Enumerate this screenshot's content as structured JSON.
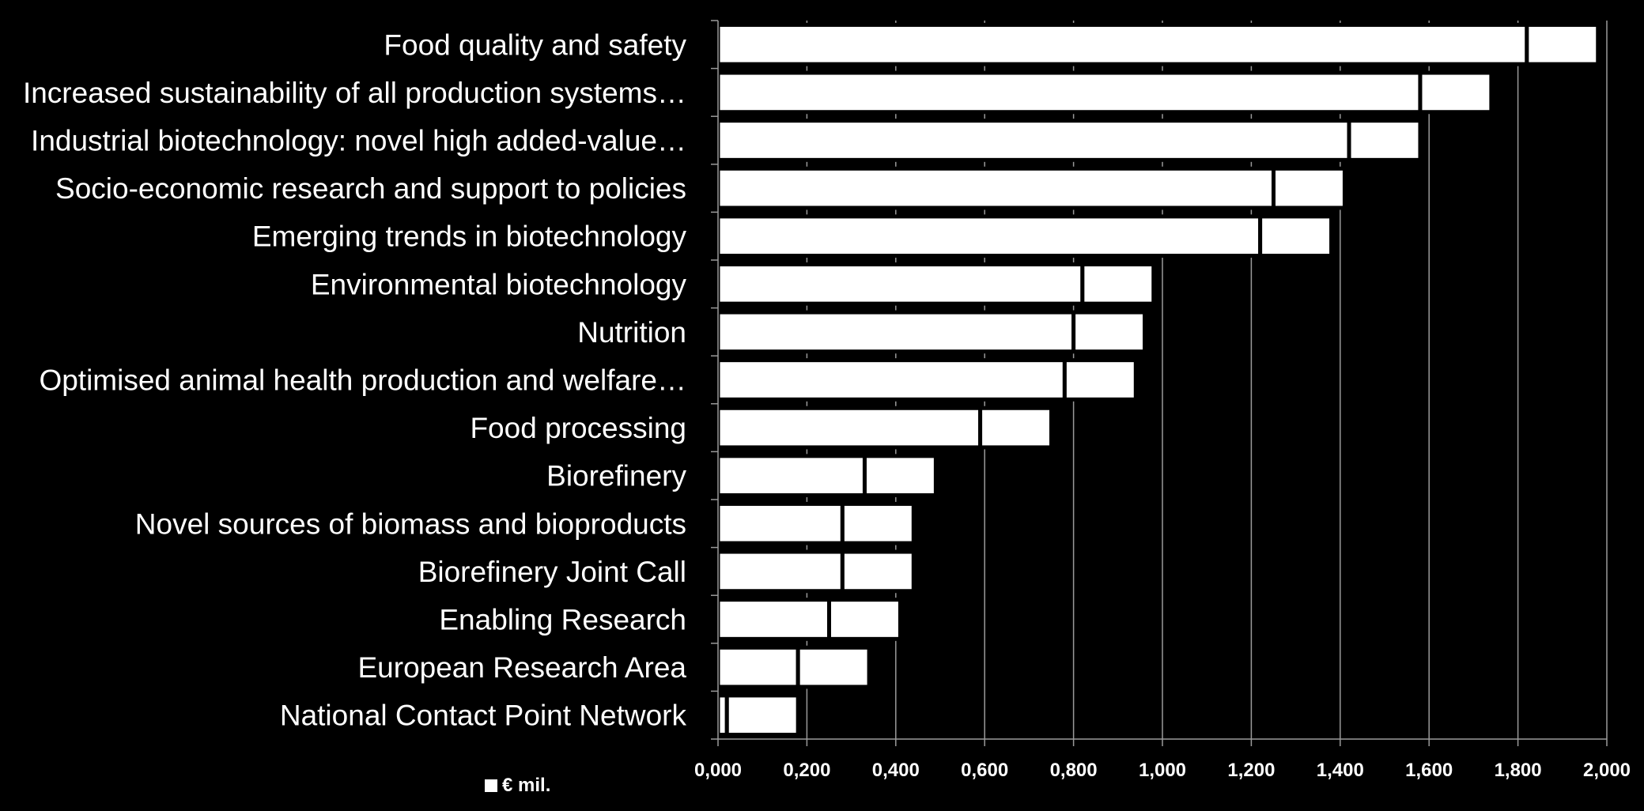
{
  "chart_data": {
    "type": "bar",
    "orientation": "horizontal",
    "stacked": true,
    "categories": [
      "Food quality and safety",
      "Increased sustainability of all production systems…",
      "Industrial biotechnology: novel high added-value…",
      "Socio-economic research and support to policies",
      "Emerging trends in biotechnology",
      "Environmental biotechnology",
      "Nutrition",
      "Optimised animal health production and welfare…",
      "Food processing",
      "Biorefinery",
      "Novel sources of biomass and bioproducts",
      "Biorefinery Joint Call",
      "Enabling Research",
      "European Research Area",
      "National Contact Point Network"
    ],
    "series": [
      {
        "name": "€ mil.",
        "values": [
          1.82,
          1.58,
          1.42,
          1.25,
          1.22,
          0.82,
          0.8,
          0.78,
          0.59,
          0.33,
          0.28,
          0.28,
          0.25,
          0.18,
          0.02
        ]
      },
      {
        "values": [
          0.16,
          0.16,
          0.16,
          0.16,
          0.16,
          0.16,
          0.16,
          0.16,
          0.16,
          0.16,
          0.16,
          0.16,
          0.16,
          0.16,
          0.16
        ]
      }
    ],
    "x_ticks": [
      "0,000",
      "0,200",
      "0,400",
      "0,600",
      "0,800",
      "1,000",
      "1,200",
      "1,400",
      "1,600",
      "1,800",
      "2,000"
    ],
    "xlim": [
      0,
      2.0
    ],
    "grid": true,
    "legend_position": "bottom-left",
    "colors": {
      "background": "#000000",
      "bar_fill": "#ffffff",
      "bar_stroke": "#000000",
      "grid": "#9a9a9a",
      "text": "#ffffff"
    }
  }
}
